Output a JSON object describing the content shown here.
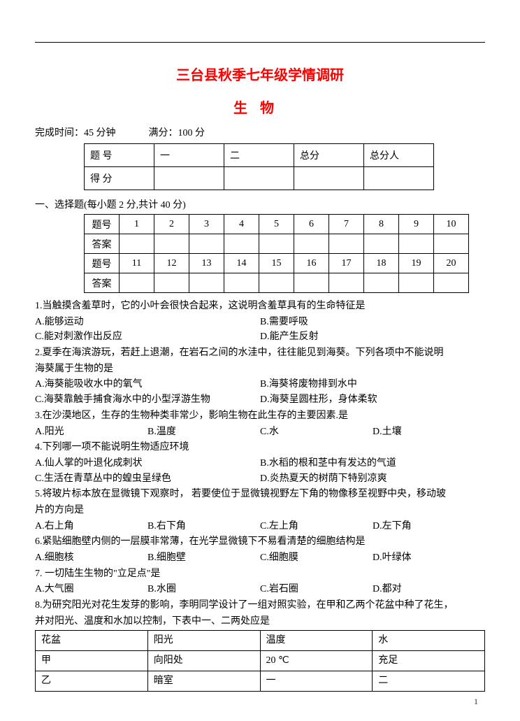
{
  "header": {
    "title_main": "三台县秋季七年级学情调研",
    "title_sub": "生物",
    "time_label": "完成时间：45 分钟",
    "full_label": "满分：100 分"
  },
  "score_table": {
    "rows": [
      {
        "label": "题 号",
        "c1": "一",
        "c2": "二",
        "c3": "总分",
        "c4": "总分人"
      },
      {
        "label": "得 分",
        "c1": "",
        "c2": "",
        "c3": "",
        "c4": ""
      }
    ]
  },
  "section1_head": "一、选择题(每小题 2 分,共计 40 分)",
  "answer_grid": {
    "r1": {
      "label": "题号",
      "cells": [
        "1",
        "2",
        "3",
        "4",
        "5",
        "6",
        "7",
        "8",
        "9",
        "10"
      ]
    },
    "r2": {
      "label": "答案",
      "cells": [
        "",
        "",
        "",
        "",
        "",
        "",
        "",
        "",
        "",
        ""
      ]
    },
    "r3": {
      "label": "题号",
      "cells": [
        "11",
        "12",
        "13",
        "14",
        "15",
        "16",
        "17",
        "18",
        "19",
        "20"
      ]
    },
    "r4": {
      "label": "答案",
      "cells": [
        "",
        "",
        "",
        "",
        "",
        "",
        "",
        "",
        "",
        ""
      ]
    }
  },
  "q1": {
    "stem": "1.当触摸含羞草时，它的小叶会很快合起来，这说明含羞草具有的生命特征是",
    "a": "A.能够运动",
    "b": "B.需要呼吸",
    "c": "C.能对刺激作出反应",
    "d": "D.能产生反射"
  },
  "q2": {
    "stem1": "2.夏季在海滨游玩，若赶上退潮，在岩石之间的水洼中，往往能见到海葵。下列各项中不能说明",
    "stem2": "海葵属于生物的是",
    "a": "A.海葵能吸收水中的氧气",
    "b": "B.海葵将废物排到水中",
    "c": "C.海葵靠触手捕食海水中的小型浮游生物",
    "d": "D.海葵呈圆柱形，身体柔软"
  },
  "q3": {
    "stem": "3.在沙漠地区，生存的生物种类非常少，影响生物在此生存的主要因素.是",
    "a": "A.阳光",
    "b": "B.温度",
    "c": "C.水",
    "d": "D.土壤"
  },
  "q4": {
    "stem": "4.下列哪一项不能说明生物适应环境",
    "a": "A.仙人掌的叶退化成刺状",
    "b": "B.水稻的根和茎中有发达的气道",
    "c": "C.生活在青草丛中的蝗虫呈绿色",
    "d": "D.炎热夏天的树荫下特别凉爽"
  },
  "q5": {
    "stem1": "5.将玻片标本放在显微镜下观察时， 若要使位于显微镜视野左下角的物像移至视野中央，移动玻",
    "stem2": "片的方向是",
    "a": "A.右上角",
    "b": "B.右下角",
    "c": "C.左上角",
    "d": "D.左下角"
  },
  "q6": {
    "stem": "6.紧贴细胞壁内侧的一层膜非常薄，在光学显微镜下不易看清楚的细胞结构是",
    "a": "A.细胞核",
    "b": "B.细胞壁",
    "c": "C.细胞膜",
    "d": "D.叶绿体"
  },
  "q7": {
    "stem": "7. 一切陆生生物的\"立足点\"是",
    "a": "A.大气圈",
    "b": "B.水圈",
    "c": "C.岩石圈",
    "d": "D.都对"
  },
  "q8": {
    "stem1": "8.为研究阳光对花生发芽的影响，李明同学设计了一组对照实验，在甲和乙两个花盆中种了花生，",
    "stem2": "并对阳光、温度和水加以控制，下表中一、二两处应是",
    "header": {
      "c1": "花盆",
      "c2": "阳光",
      "c3": "温度",
      "c4": "水"
    },
    "row1": {
      "c1": "甲",
      "c2": "向阳处",
      "c3": "20 ℃",
      "c4": "充足"
    },
    "row2": {
      "c1": "乙",
      "c2": "暗室",
      "c3": "一",
      "c4": "二"
    }
  },
  "page_number": "1"
}
